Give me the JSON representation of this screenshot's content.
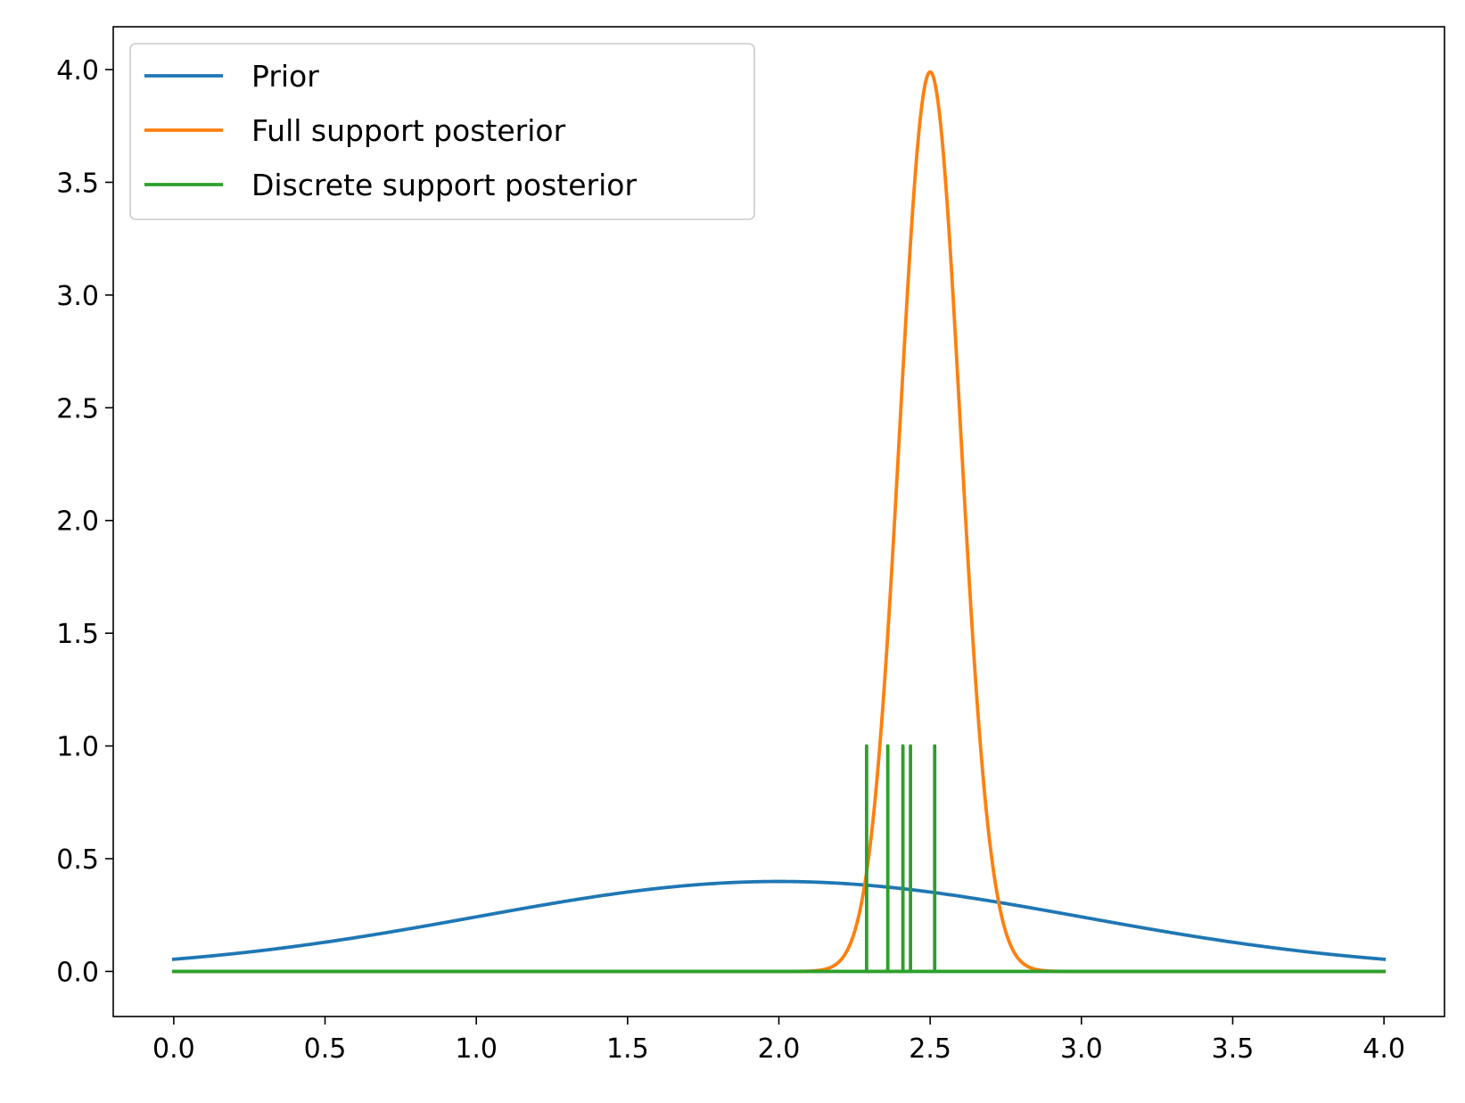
{
  "chart_data": {
    "type": "line",
    "title": "",
    "xlabel": "",
    "ylabel": "",
    "xlim": [
      -0.2,
      4.2
    ],
    "ylim": [
      -0.2,
      4.19
    ],
    "xticks": [
      "0.0",
      "0.5",
      "1.0",
      "1.5",
      "2.0",
      "2.5",
      "3.0",
      "3.5",
      "4.0"
    ],
    "yticks": [
      "0.0",
      "0.5",
      "1.0",
      "1.5",
      "2.0",
      "2.5",
      "3.0",
      "3.5",
      "4.0"
    ],
    "grid": false,
    "legend_position": "upper-left",
    "series": [
      {
        "name": "Prior",
        "kind": "normal-density",
        "mean": 2.0,
        "sd": 1.0,
        "x_range": [
          0.0,
          4.0
        ],
        "peak": 0.399,
        "color": "#1f77b4"
      },
      {
        "name": "Full support posterior",
        "kind": "normal-density",
        "mean": 2.5,
        "sd": 0.1,
        "x_range": [
          0.0,
          4.0
        ],
        "peak": 3.99,
        "color": "#ff7f0e"
      },
      {
        "name": "Discrete support posterior",
        "kind": "spikes",
        "x_range": [
          0.0,
          4.0
        ],
        "spikes_x": [
          2.29,
          2.36,
          2.41,
          2.435,
          2.515
        ],
        "spike_height": 1.0,
        "color": "#2ca02c"
      }
    ]
  }
}
